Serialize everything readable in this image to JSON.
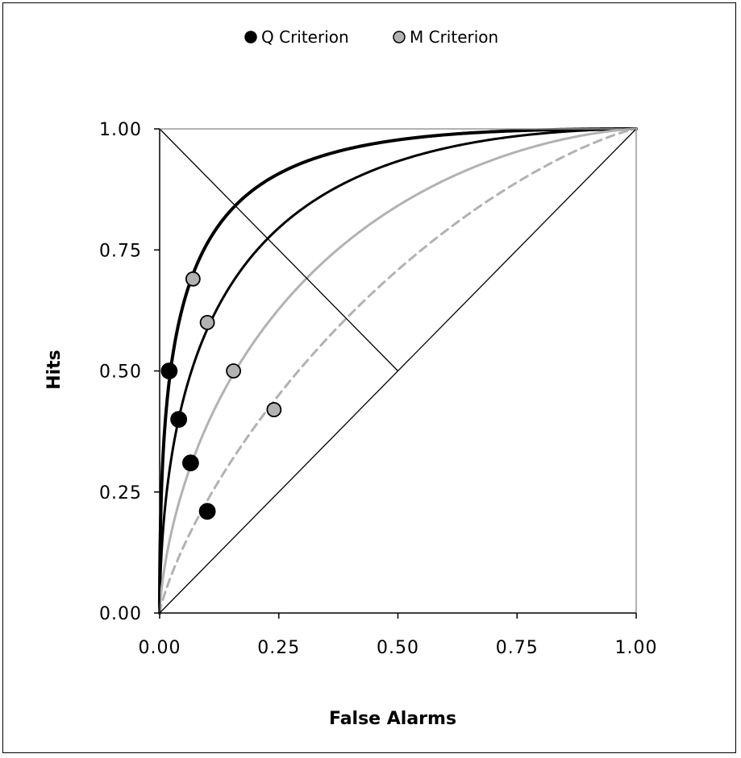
{
  "chart_data": {
    "type": "scatter",
    "title": "",
    "xlabel": "False Alarms",
    "ylabel": "Hits",
    "xlim": [
      0,
      1
    ],
    "ylim": [
      0,
      1
    ],
    "x_ticks": [
      "0.00",
      "0.25",
      "0.50",
      "0.75",
      "1.00"
    ],
    "y_ticks": [
      "0.00",
      "0.25",
      "0.50",
      "0.75",
      "1.00"
    ],
    "grid": false,
    "legend_position": "top-center",
    "series": [
      {
        "name": "Q Criterion",
        "color": "#000000",
        "marker": "filled-black-circle",
        "points": [
          {
            "x": 0.02,
            "y": 0.5
          },
          {
            "x": 0.04,
            "y": 0.4
          },
          {
            "x": 0.065,
            "y": 0.31
          },
          {
            "x": 0.1,
            "y": 0.21
          }
        ]
      },
      {
        "name": "M Criterion",
        "color": "#b2b2b2",
        "marker": "grey-circle-outlined",
        "points": [
          {
            "x": 0.07,
            "y": 0.69
          },
          {
            "x": 0.1,
            "y": 0.6
          },
          {
            "x": 0.155,
            "y": 0.5
          },
          {
            "x": 0.24,
            "y": 0.42
          }
        ]
      }
    ],
    "roc_curves": [
      {
        "d_prime": 2.0,
        "color": "#000000",
        "style": "solid-thick"
      },
      {
        "d_prime": 1.5,
        "color": "#000000",
        "style": "solid"
      },
      {
        "d_prime": 1.0,
        "color": "#b2b2b2",
        "style": "solid"
      },
      {
        "d_prime": 0.55,
        "color": "#b2b2b2",
        "style": "dashed"
      }
    ],
    "reference_lines": [
      {
        "from": [
          0,
          0
        ],
        "to": [
          1,
          1
        ]
      },
      {
        "from": [
          0,
          1
        ],
        "to": [
          0.5,
          0.5
        ]
      }
    ]
  }
}
